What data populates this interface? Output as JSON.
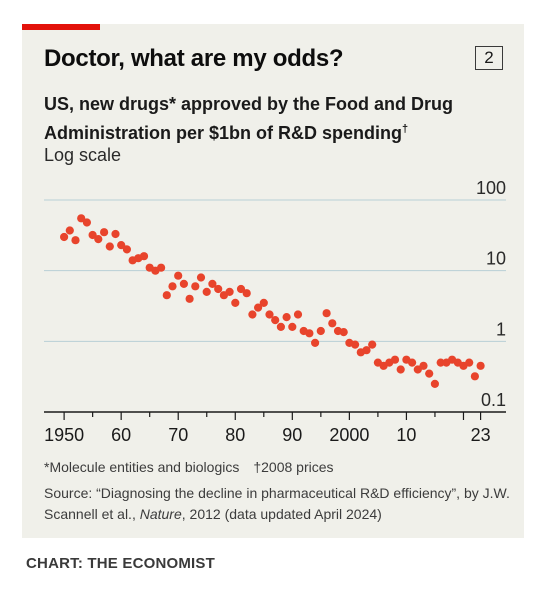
{
  "header": {
    "title": "Doctor, what are my odds?",
    "badge": "2",
    "subtitle_main": "US, new drugs* approved by the Food and Drug Administration per $1bn of R&D spending",
    "subtitle_mark": "†",
    "scale_note": "Log scale"
  },
  "footnotes": {
    "note1": "*Molecule entities and biologics",
    "note2": "†2008 prices",
    "source_prefix": "Source: “Diagnosing the decline in pharmaceutical R&D efficiency”, by J.W. Scannell et al., ",
    "source_journal": "Nature",
    "source_suffix": ", 2012 (data updated April 2024)"
  },
  "credit": "CHART: THE ECONOMIST",
  "colors": {
    "dots": "#e8442c",
    "grid": "#b8cfd6",
    "axis": "#1a1a1a",
    "brand_red": "#e3120b",
    "panel": "#f0f0ea"
  },
  "chart_data": {
    "type": "scatter",
    "scale": "log",
    "ylim": [
      0.1,
      100
    ],
    "xlim": [
      1947,
      2025
    ],
    "y_ticks": [
      100,
      10,
      1,
      0.1
    ],
    "y_tick_labels": [
      "100",
      "10",
      "1",
      "0.1"
    ],
    "x_tick_labels": [
      {
        "year": 1950,
        "label": "1950"
      },
      {
        "year": 1960,
        "label": "60"
      },
      {
        "year": 1970,
        "label": "70"
      },
      {
        "year": 1980,
        "label": "80"
      },
      {
        "year": 1990,
        "label": "90"
      },
      {
        "year": 2000,
        "label": "2000"
      },
      {
        "year": 2010,
        "label": "10"
      },
      {
        "year": 2023,
        "label": "23"
      }
    ],
    "x": [
      1950,
      1951,
      1952,
      1953,
      1954,
      1955,
      1956,
      1957,
      1958,
      1959,
      1960,
      1961,
      1962,
      1963,
      1964,
      1965,
      1966,
      1967,
      1968,
      1969,
      1970,
      1971,
      1972,
      1973,
      1974,
      1975,
      1976,
      1977,
      1978,
      1979,
      1980,
      1981,
      1982,
      1983,
      1984,
      1985,
      1986,
      1987,
      1988,
      1989,
      1990,
      1991,
      1992,
      1993,
      1994,
      1995,
      1996,
      1997,
      1998,
      1999,
      2000,
      2001,
      2002,
      2003,
      2004,
      2005,
      2006,
      2007,
      2008,
      2009,
      2010,
      2011,
      2012,
      2013,
      2014,
      2015,
      2016,
      2017,
      2018,
      2019,
      2020,
      2021,
      2022,
      2023
    ],
    "y": [
      30,
      37,
      27,
      55,
      48,
      32,
      28,
      35,
      22,
      33,
      23,
      20,
      14,
      15,
      16,
      11,
      10,
      11,
      4.5,
      6,
      8.5,
      6.5,
      4,
      6,
      8,
      5,
      6.5,
      5.5,
      4.5,
      5,
      3.5,
      5.5,
      4.8,
      2.4,
      3,
      3.5,
      2.4,
      2,
      1.6,
      2.2,
      1.6,
      2.4,
      1.4,
      1.3,
      0.95,
      1.4,
      2.5,
      1.8,
      1.4,
      1.35,
      0.95,
      0.9,
      0.7,
      0.75,
      0.9,
      0.5,
      0.45,
      0.5,
      0.55,
      0.4,
      0.55,
      0.5,
      0.4,
      0.45,
      0.35,
      0.25,
      0.5,
      0.5,
      0.55,
      0.5,
      0.45,
      0.5,
      0.32,
      0.45
    ]
  }
}
